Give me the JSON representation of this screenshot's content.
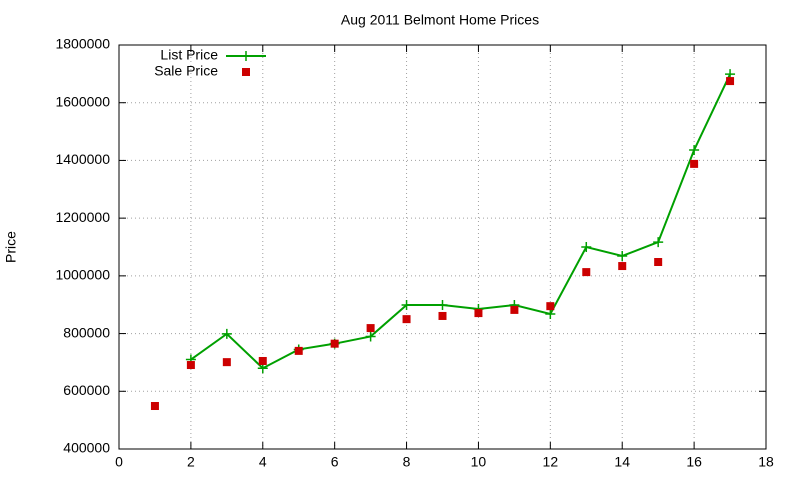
{
  "chart_data": {
    "type": "line",
    "title": "Aug 2011 Belmont Home Prices",
    "y_label": "Price",
    "x": [
      1,
      2,
      3,
      4,
      5,
      6,
      7,
      8,
      9,
      10,
      11,
      12,
      13,
      14,
      15,
      16,
      17
    ],
    "series": [
      {
        "name": "List Price",
        "color": "#00a000",
        "style": "linespoints",
        "values": [
          null,
          710000,
          799000,
          680000,
          745000,
          765000,
          790000,
          899000,
          899000,
          885000,
          899000,
          868000,
          1100000,
          1069000,
          1117000,
          1436000,
          1699000
        ]
      },
      {
        "name": "Sale Price",
        "color": "#cc0000",
        "style": "points",
        "values": [
          549000,
          691000,
          701000,
          705000,
          740000,
          765000,
          819000,
          850000,
          861000,
          871000,
          882000,
          895000,
          1013000,
          1034000,
          1048000,
          1388000,
          1675000
        ]
      }
    ],
    "xlim": [
      0,
      18
    ],
    "xticks": [
      0,
      2,
      4,
      6,
      8,
      10,
      12,
      14,
      16,
      18
    ],
    "ylim": [
      400000,
      1800000
    ],
    "yticks": [
      400000,
      600000,
      800000,
      1000000,
      1200000,
      1400000,
      1600000,
      1800000
    ],
    "grid": true,
    "legend": "top-left"
  }
}
